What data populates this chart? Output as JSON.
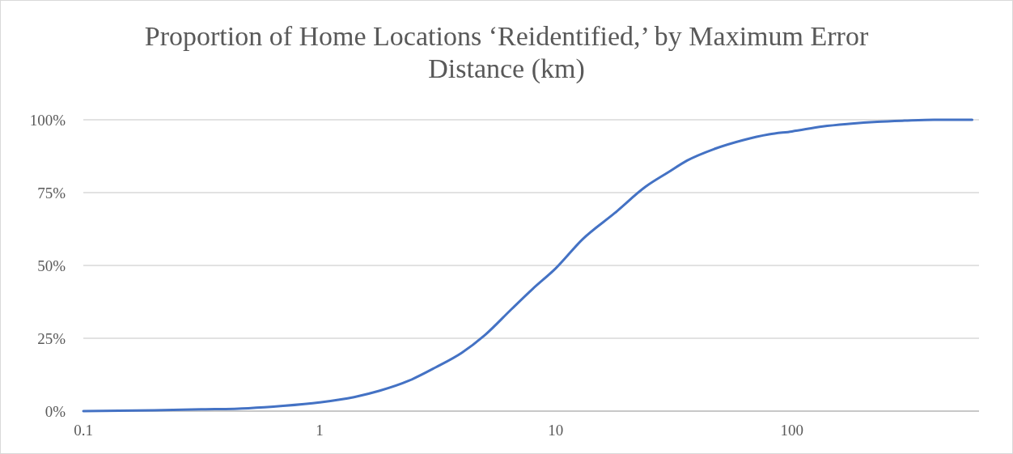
{
  "chart_data": {
    "type": "line",
    "title": "Proportion of Home Locations ‘Reidentified,’ by Maximum Error Distance (km)",
    "x": [
      0.1,
      0.2,
      0.316,
      0.5,
      0.7,
      1,
      1.4,
      1.8,
      2.4,
      3.1,
      4,
      5,
      6.5,
      8,
      10,
      13,
      17.8,
      24,
      30,
      36,
      47,
      62,
      80,
      100,
      135,
      175,
      230,
      300,
      400,
      580
    ],
    "series": [
      {
        "color": "#4472c4",
        "values": [
          0,
          0.3,
          0.6,
          1,
          1.8,
          3,
          4.8,
          7,
          10.5,
          15,
          20,
          26,
          35,
          42,
          49,
          59,
          68,
          77,
          82,
          86,
          90,
          93,
          95,
          96,
          97.7,
          98.6,
          99.3,
          99.7,
          100,
          100
        ]
      }
    ],
    "log": "x",
    "xlim": [
      0.1,
      620
    ],
    "xticks": [
      0.1,
      1,
      10,
      100
    ],
    "ylim": [
      0,
      100
    ],
    "yticks": [
      {
        "value": 0,
        "label": "0%"
      },
      {
        "value": 25,
        "label": "25%"
      },
      {
        "value": 50,
        "label": "50%"
      },
      {
        "value": 75,
        "label": "75%"
      },
      {
        "value": 100,
        "label": "100%"
      }
    ],
    "grid": "y"
  }
}
